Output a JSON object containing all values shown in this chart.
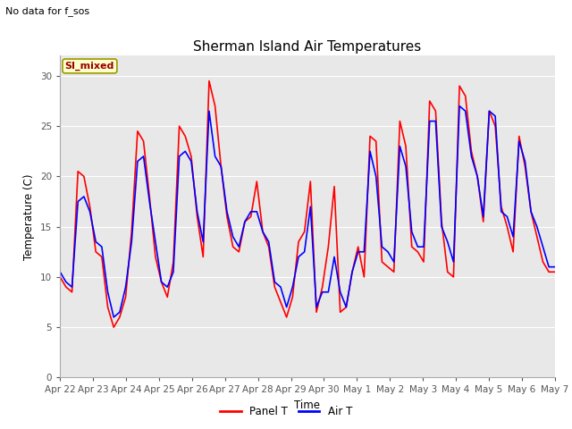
{
  "title": "Sherman Island Air Temperatures",
  "subtitle": "No data for f_sos",
  "xlabel": "Time",
  "ylabel": "Temperature (C)",
  "ylim": [
    0,
    32
  ],
  "yticks": [
    0,
    5,
    10,
    15,
    20,
    25,
    30
  ],
  "bg_color": "#e8e8e8",
  "panel_color": "red",
  "air_color": "blue",
  "legend_label_panel": "Panel T",
  "legend_label_air": "Air T",
  "legend_box_color": "#ffffcc",
  "legend_box_edge": "#999900",
  "si_mixed_color": "#990000",
  "tick_labels": [
    "Apr 22",
    "Apr 23",
    "Apr 24",
    "Apr 25",
    "Apr 26",
    "Apr 27",
    "Apr 28",
    "Apr 29",
    "Apr 30",
    "May 1",
    "May 2",
    "May 3",
    "May 4",
    "May 5",
    "May 6",
    "May 7"
  ],
  "title_fontsize": 11,
  "tick_fontsize": 7.5,
  "label_fontsize": 8.5,
  "subtitle_fontsize": 8,
  "panel_T": [
    10.0,
    9.0,
    8.5,
    20.5,
    20.0,
    17.0,
    12.5,
    12.0,
    7.0,
    5.0,
    6.0,
    8.0,
    14.5,
    24.5,
    23.5,
    18.0,
    12.0,
    9.5,
    8.0,
    11.5,
    25.0,
    24.0,
    22.0,
    16.0,
    12.0,
    29.5,
    27.0,
    21.0,
    16.0,
    13.0,
    12.5,
    15.5,
    16.0,
    19.5,
    14.5,
    13.0,
    9.0,
    7.5,
    6.0,
    8.0,
    13.5,
    14.5,
    19.5,
    6.5,
    9.0,
    13.0,
    19.0,
    6.5,
    7.0,
    10.5,
    13.0,
    10.0,
    24.0,
    23.5,
    11.5,
    11.0,
    10.5,
    25.5,
    23.0,
    13.0,
    12.5,
    11.5,
    27.5,
    26.5,
    15.5,
    10.5,
    10.0,
    29.0,
    28.0,
    22.5,
    20.0,
    15.5,
    26.5,
    25.0,
    17.0,
    15.0,
    12.5,
    24.0,
    21.0,
    16.5,
    14.0,
    11.5,
    10.5,
    10.5
  ],
  "air_T": [
    10.5,
    9.5,
    9.0,
    17.5,
    18.0,
    16.5,
    13.5,
    13.0,
    8.5,
    6.0,
    6.5,
    9.0,
    13.5,
    21.5,
    22.0,
    17.5,
    13.5,
    9.5,
    9.0,
    10.5,
    22.0,
    22.5,
    21.5,
    16.5,
    13.5,
    26.5,
    22.0,
    21.0,
    16.5,
    14.0,
    13.0,
    15.5,
    16.5,
    16.5,
    14.5,
    13.5,
    9.5,
    9.0,
    7.0,
    9.0,
    12.0,
    12.5,
    17.0,
    7.0,
    8.5,
    8.5,
    12.0,
    8.5,
    7.0,
    10.5,
    12.5,
    12.5,
    22.5,
    20.0,
    13.0,
    12.5,
    11.5,
    23.0,
    21.0,
    14.5,
    13.0,
    13.0,
    25.5,
    25.5,
    15.0,
    13.5,
    11.5,
    27.0,
    26.5,
    22.0,
    20.0,
    16.0,
    26.5,
    26.0,
    16.5,
    16.0,
    14.0,
    23.5,
    21.5,
    16.5,
    15.0,
    13.0,
    11.0,
    11.0
  ]
}
